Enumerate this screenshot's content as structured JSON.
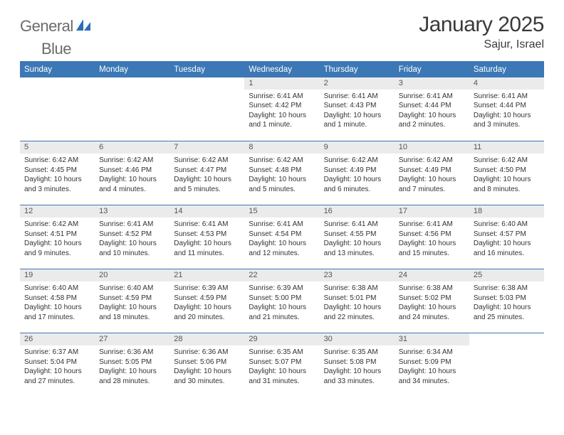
{
  "brand": {
    "text_gray": "General",
    "text_blue": "Blue",
    "logo_color": "#2a6fb5"
  },
  "title": {
    "month": "January 2025",
    "location": "Sajur, Israel"
  },
  "colors": {
    "header_bg": "#3b78b5",
    "header_text": "#ffffff",
    "daynum_bg": "#ebebeb",
    "rule": "#3b78b5"
  },
  "weekdays": [
    "Sunday",
    "Monday",
    "Tuesday",
    "Wednesday",
    "Thursday",
    "Friday",
    "Saturday"
  ],
  "weeks": [
    [
      {
        "n": "",
        "lines": []
      },
      {
        "n": "",
        "lines": []
      },
      {
        "n": "",
        "lines": []
      },
      {
        "n": "1",
        "lines": [
          "Sunrise: 6:41 AM",
          "Sunset: 4:42 PM",
          "Daylight: 10 hours",
          "and 1 minute."
        ]
      },
      {
        "n": "2",
        "lines": [
          "Sunrise: 6:41 AM",
          "Sunset: 4:43 PM",
          "Daylight: 10 hours",
          "and 1 minute."
        ]
      },
      {
        "n": "3",
        "lines": [
          "Sunrise: 6:41 AM",
          "Sunset: 4:44 PM",
          "Daylight: 10 hours",
          "and 2 minutes."
        ]
      },
      {
        "n": "4",
        "lines": [
          "Sunrise: 6:41 AM",
          "Sunset: 4:44 PM",
          "Daylight: 10 hours",
          "and 3 minutes."
        ]
      }
    ],
    [
      {
        "n": "5",
        "lines": [
          "Sunrise: 6:42 AM",
          "Sunset: 4:45 PM",
          "Daylight: 10 hours",
          "and 3 minutes."
        ]
      },
      {
        "n": "6",
        "lines": [
          "Sunrise: 6:42 AM",
          "Sunset: 4:46 PM",
          "Daylight: 10 hours",
          "and 4 minutes."
        ]
      },
      {
        "n": "7",
        "lines": [
          "Sunrise: 6:42 AM",
          "Sunset: 4:47 PM",
          "Daylight: 10 hours",
          "and 5 minutes."
        ]
      },
      {
        "n": "8",
        "lines": [
          "Sunrise: 6:42 AM",
          "Sunset: 4:48 PM",
          "Daylight: 10 hours",
          "and 5 minutes."
        ]
      },
      {
        "n": "9",
        "lines": [
          "Sunrise: 6:42 AM",
          "Sunset: 4:49 PM",
          "Daylight: 10 hours",
          "and 6 minutes."
        ]
      },
      {
        "n": "10",
        "lines": [
          "Sunrise: 6:42 AM",
          "Sunset: 4:49 PM",
          "Daylight: 10 hours",
          "and 7 minutes."
        ]
      },
      {
        "n": "11",
        "lines": [
          "Sunrise: 6:42 AM",
          "Sunset: 4:50 PM",
          "Daylight: 10 hours",
          "and 8 minutes."
        ]
      }
    ],
    [
      {
        "n": "12",
        "lines": [
          "Sunrise: 6:42 AM",
          "Sunset: 4:51 PM",
          "Daylight: 10 hours",
          "and 9 minutes."
        ]
      },
      {
        "n": "13",
        "lines": [
          "Sunrise: 6:41 AM",
          "Sunset: 4:52 PM",
          "Daylight: 10 hours",
          "and 10 minutes."
        ]
      },
      {
        "n": "14",
        "lines": [
          "Sunrise: 6:41 AM",
          "Sunset: 4:53 PM",
          "Daylight: 10 hours",
          "and 11 minutes."
        ]
      },
      {
        "n": "15",
        "lines": [
          "Sunrise: 6:41 AM",
          "Sunset: 4:54 PM",
          "Daylight: 10 hours",
          "and 12 minutes."
        ]
      },
      {
        "n": "16",
        "lines": [
          "Sunrise: 6:41 AM",
          "Sunset: 4:55 PM",
          "Daylight: 10 hours",
          "and 13 minutes."
        ]
      },
      {
        "n": "17",
        "lines": [
          "Sunrise: 6:41 AM",
          "Sunset: 4:56 PM",
          "Daylight: 10 hours",
          "and 15 minutes."
        ]
      },
      {
        "n": "18",
        "lines": [
          "Sunrise: 6:40 AM",
          "Sunset: 4:57 PM",
          "Daylight: 10 hours",
          "and 16 minutes."
        ]
      }
    ],
    [
      {
        "n": "19",
        "lines": [
          "Sunrise: 6:40 AM",
          "Sunset: 4:58 PM",
          "Daylight: 10 hours",
          "and 17 minutes."
        ]
      },
      {
        "n": "20",
        "lines": [
          "Sunrise: 6:40 AM",
          "Sunset: 4:59 PM",
          "Daylight: 10 hours",
          "and 18 minutes."
        ]
      },
      {
        "n": "21",
        "lines": [
          "Sunrise: 6:39 AM",
          "Sunset: 4:59 PM",
          "Daylight: 10 hours",
          "and 20 minutes."
        ]
      },
      {
        "n": "22",
        "lines": [
          "Sunrise: 6:39 AM",
          "Sunset: 5:00 PM",
          "Daylight: 10 hours",
          "and 21 minutes."
        ]
      },
      {
        "n": "23",
        "lines": [
          "Sunrise: 6:38 AM",
          "Sunset: 5:01 PM",
          "Daylight: 10 hours",
          "and 22 minutes."
        ]
      },
      {
        "n": "24",
        "lines": [
          "Sunrise: 6:38 AM",
          "Sunset: 5:02 PM",
          "Daylight: 10 hours",
          "and 24 minutes."
        ]
      },
      {
        "n": "25",
        "lines": [
          "Sunrise: 6:38 AM",
          "Sunset: 5:03 PM",
          "Daylight: 10 hours",
          "and 25 minutes."
        ]
      }
    ],
    [
      {
        "n": "26",
        "lines": [
          "Sunrise: 6:37 AM",
          "Sunset: 5:04 PM",
          "Daylight: 10 hours",
          "and 27 minutes."
        ]
      },
      {
        "n": "27",
        "lines": [
          "Sunrise: 6:36 AM",
          "Sunset: 5:05 PM",
          "Daylight: 10 hours",
          "and 28 minutes."
        ]
      },
      {
        "n": "28",
        "lines": [
          "Sunrise: 6:36 AM",
          "Sunset: 5:06 PM",
          "Daylight: 10 hours",
          "and 30 minutes."
        ]
      },
      {
        "n": "29",
        "lines": [
          "Sunrise: 6:35 AM",
          "Sunset: 5:07 PM",
          "Daylight: 10 hours",
          "and 31 minutes."
        ]
      },
      {
        "n": "30",
        "lines": [
          "Sunrise: 6:35 AM",
          "Sunset: 5:08 PM",
          "Daylight: 10 hours",
          "and 33 minutes."
        ]
      },
      {
        "n": "31",
        "lines": [
          "Sunrise: 6:34 AM",
          "Sunset: 5:09 PM",
          "Daylight: 10 hours",
          "and 34 minutes."
        ]
      },
      {
        "n": "",
        "lines": []
      }
    ]
  ]
}
